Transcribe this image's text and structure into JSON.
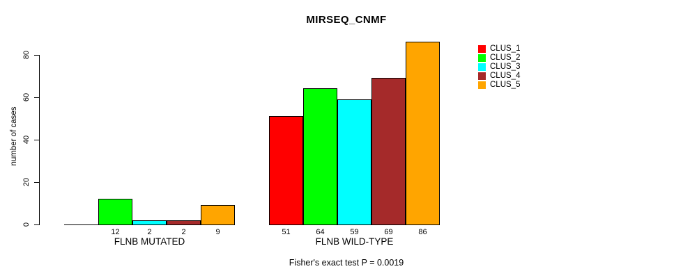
{
  "title": "MIRSEQ_CNMF",
  "chart_data": {
    "type": "bar",
    "title": "MIRSEQ_CNMF",
    "ylabel": "number of cases",
    "ylim": [
      0,
      86
    ],
    "yticks": [
      0,
      20,
      40,
      60,
      80
    ],
    "grid": false,
    "legend_position": "right-inside",
    "annotation": "Fisher's exact test P = 0.0019",
    "categories": [
      "FLNB MUTATED",
      "FLNB WILD-TYPE"
    ],
    "series": [
      {
        "name": "CLUS_1",
        "color": "#FF0000",
        "values": [
          0,
          51
        ],
        "value_labels": [
          "",
          "51"
        ]
      },
      {
        "name": "CLUS_2",
        "color": "#00FF00",
        "values": [
          12,
          64
        ],
        "value_labels": [
          "12",
          "64"
        ]
      },
      {
        "name": "CLUS_3",
        "color": "#00FFFF",
        "values": [
          2,
          59
        ],
        "value_labels": [
          "2",
          "59"
        ]
      },
      {
        "name": "CLUS_4",
        "color": "#A52A2A",
        "values": [
          2,
          69
        ],
        "value_labels": [
          "2",
          "69"
        ]
      },
      {
        "name": "CLUS_5",
        "color": "#FFA500",
        "values": [
          9,
          86
        ],
        "value_labels": [
          "9",
          "86"
        ]
      }
    ]
  }
}
